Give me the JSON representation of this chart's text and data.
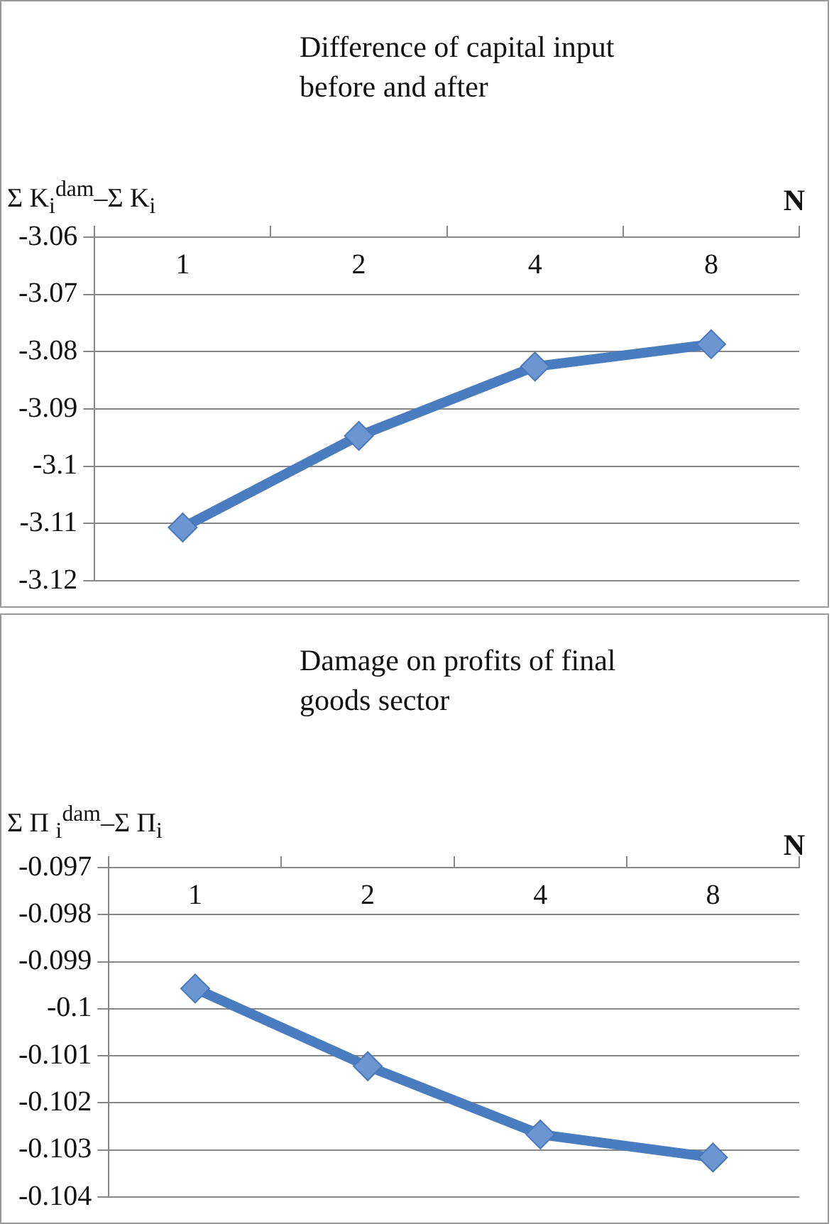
{
  "chart_data": [
    {
      "type": "line",
      "title": "Difference of capital input\nbefore and after",
      "xlabel": "N",
      "ylabel": "Σ K$_{i}$$^{dam}$–Σ K$_{i}$",
      "categories": [
        "1",
        "2",
        "4",
        "8"
      ],
      "series": [
        {
          "color": "#4a7cc0",
          "values": [
            -3.1107,
            -3.0947,
            -3.0826,
            -3.0787
          ]
        }
      ],
      "ylim": [
        -3.12,
        -3.06
      ],
      "yticks": [
        -3.12,
        -3.11,
        -3.1,
        -3.09,
        -3.08,
        -3.07,
        -3.06
      ],
      "grid": "y",
      "legend": false,
      "marker": "diamond",
      "line_style": "solid"
    },
    {
      "type": "line",
      "title": "Damage on profits of final\ngoods sector",
      "xlabel": "N",
      "ylabel": "Σ Π $_{i}$$^{dam}$–Σ Π$_{i}$",
      "categories": [
        "1",
        "2",
        "4",
        "8"
      ],
      "series": [
        {
          "color": "#4a7cc0",
          "values": [
            -0.09957,
            -0.10122,
            -0.10267,
            -0.10316
          ]
        }
      ],
      "ylim": [
        -0.104,
        -0.097
      ],
      "yticks": [
        -0.104,
        -0.103,
        -0.102,
        -0.101,
        -0.1,
        -0.099,
        -0.098,
        -0.097
      ],
      "grid": "y",
      "legend": false,
      "marker": "diamond",
      "line_style": "solid"
    }
  ]
}
